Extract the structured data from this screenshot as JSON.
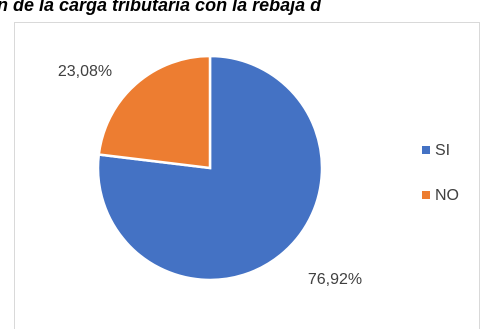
{
  "chart_data": {
    "type": "pie",
    "title": "n de la carga tributaria con la rebaja d",
    "categories": [
      "SI",
      "NO"
    ],
    "values": [
      76.92,
      23.08
    ],
    "value_labels": [
      "76,92%",
      "23,08%"
    ],
    "colors": [
      "#4472c4",
      "#ed7d31"
    ],
    "legend": "right"
  }
}
